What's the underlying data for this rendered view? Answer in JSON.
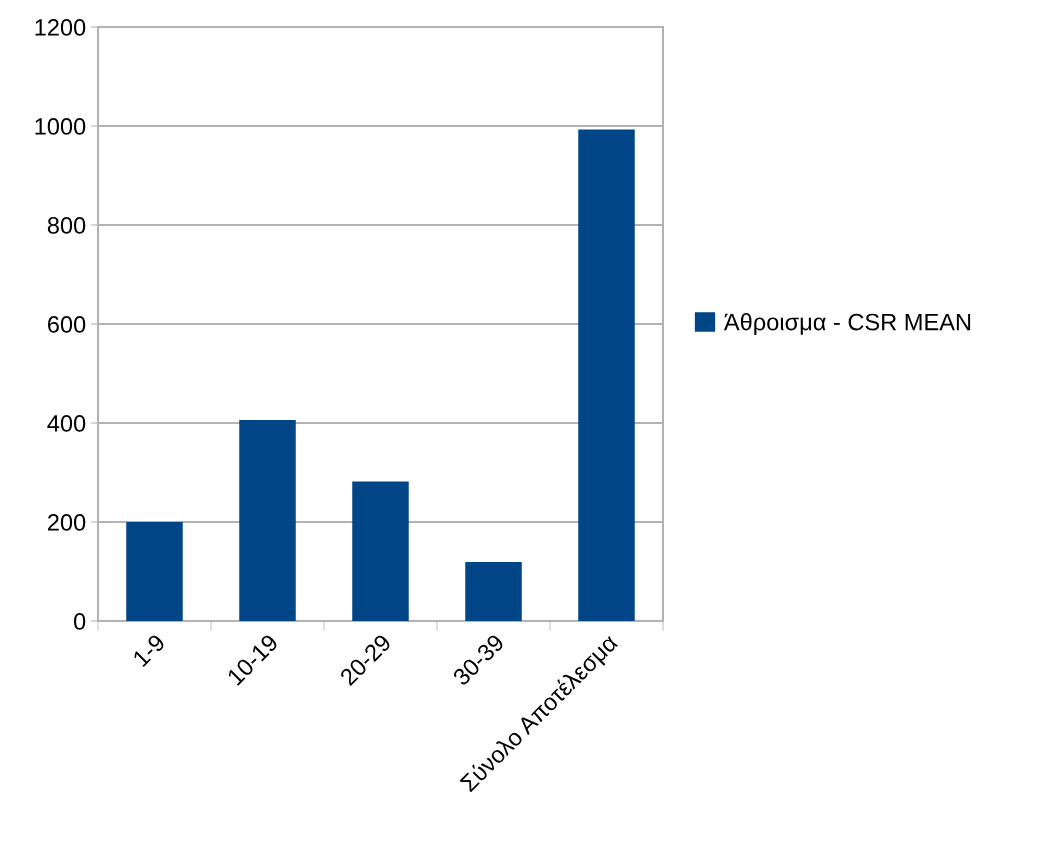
{
  "chart_data": {
    "type": "bar",
    "categories": [
      "1-9",
      "10-19",
      "20-29",
      "30-39",
      "Σύνολο Αποτέλεσμα"
    ],
    "series": [
      {
        "name": "Άθροισμα - CSR MEAN",
        "color": "#004586",
        "values": [
          200,
          406,
          282,
          119,
          993
        ]
      }
    ],
    "ylim": [
      0,
      1200
    ],
    "yticks": [
      0,
      200,
      400,
      600,
      800,
      1000,
      1200
    ],
    "grid": "y",
    "legend": "right"
  }
}
